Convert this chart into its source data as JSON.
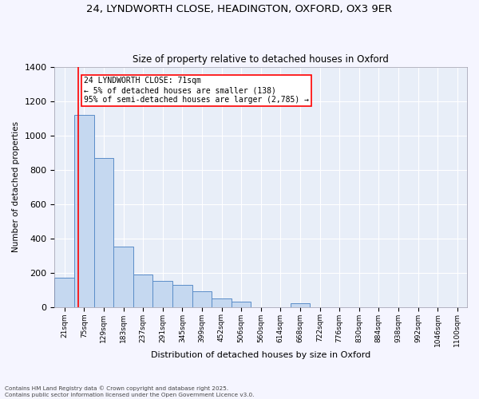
{
  "title1": "24, LYNDWORTH CLOSE, HEADINGTON, OXFORD, OX3 9ER",
  "title2": "Size of property relative to detached houses in Oxford",
  "xlabel": "Distribution of detached houses by size in Oxford",
  "ylabel": "Number of detached properties",
  "bar_color": "#c5d8f0",
  "bar_edge_color": "#5b8dc8",
  "background_color": "#e8eef8",
  "grid_color": "#ffffff",
  "categories": [
    "21sqm",
    "75sqm",
    "129sqm",
    "183sqm",
    "237sqm",
    "291sqm",
    "345sqm",
    "399sqm",
    "452sqm",
    "506sqm",
    "560sqm",
    "614sqm",
    "668sqm",
    "722sqm",
    "776sqm",
    "830sqm",
    "884sqm",
    "938sqm",
    "992sqm",
    "1046sqm",
    "1100sqm"
  ],
  "values": [
    170,
    1120,
    870,
    350,
    190,
    150,
    130,
    90,
    50,
    30,
    0,
    0,
    20,
    0,
    0,
    0,
    0,
    0,
    0,
    0,
    0
  ],
  "annotation_text": "24 LYNDWORTH CLOSE: 71sqm\n← 5% of detached houses are smaller (138)\n95% of semi-detached houses are larger (2,785) →",
  "vline_x": 0.72,
  "ylim": [
    0,
    1400
  ],
  "yticks": [
    0,
    200,
    400,
    600,
    800,
    1000,
    1200,
    1400
  ],
  "footnote": "Contains HM Land Registry data © Crown copyright and database right 2025.\nContains public sector information licensed under the Open Government Licence v3.0."
}
